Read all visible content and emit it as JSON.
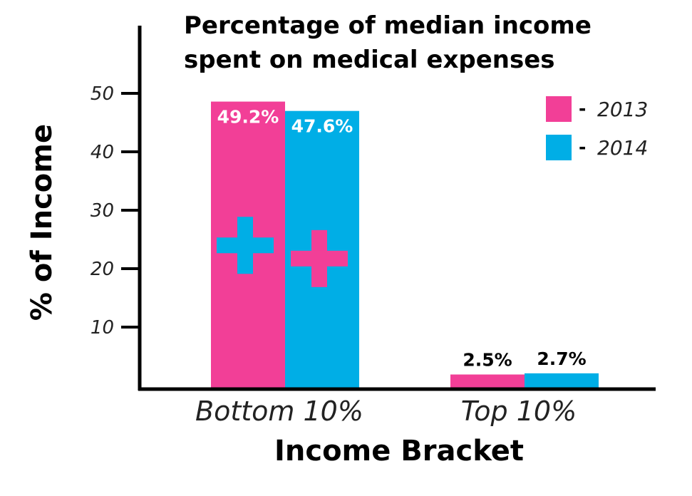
{
  "chart_data": {
    "type": "bar",
    "title_lines": [
      "Percentage of median income",
      "spent on medical expenses"
    ],
    "xlabel": "Income Bracket",
    "ylabel": "% of Income",
    "categories": [
      "Bottom 10%",
      "Top 10%"
    ],
    "series": [
      {
        "name": "2013",
        "values": [
          49.2,
          2.5
        ],
        "labels": [
          "49.2%",
          "2.5%"
        ],
        "color": "#f23f97"
      },
      {
        "name": "2014",
        "values": [
          47.6,
          2.7
        ],
        "labels": [
          "47.6%",
          "2.7%"
        ],
        "color": "#00aee6"
      }
    ],
    "yticks": [
      10,
      20,
      30,
      40,
      50
    ],
    "ytick_labels": [
      "10",
      "20",
      "30",
      "40",
      "50"
    ],
    "ylim": [
      0,
      55
    ],
    "grid": false,
    "legend": {
      "position": "top-right",
      "dash": "-"
    },
    "decoration": "medical-cross"
  }
}
